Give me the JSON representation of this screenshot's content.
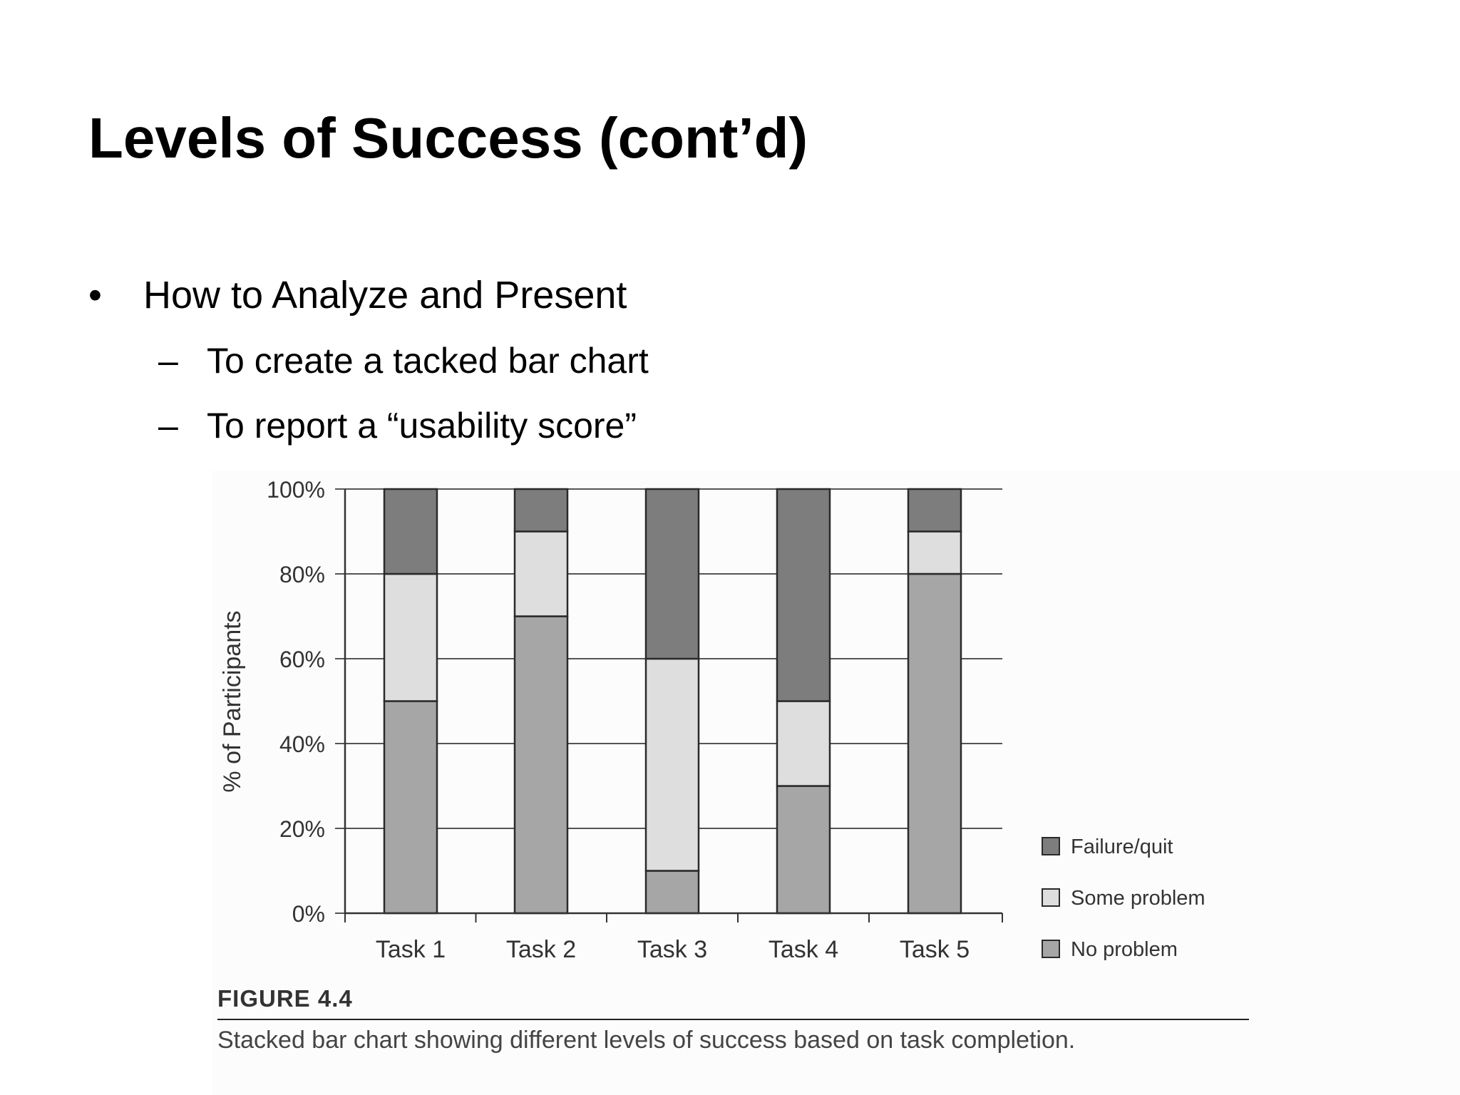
{
  "slide": {
    "title": "Levels of Success (cont’d)",
    "bullets": [
      {
        "text": "How to Analyze and Present",
        "marker": "•",
        "subbullets": [
          {
            "marker": "–",
            "text": "To create a tacked bar chart"
          },
          {
            "marker": "–",
            "text": "To report a “usability score”"
          }
        ]
      }
    ]
  },
  "figure": {
    "label": "FIGURE 4.4",
    "caption": "Stacked bar chart showing different levels of success based on task completion."
  },
  "chart_data": {
    "type": "bar",
    "stacked": true,
    "categories": [
      "Task 1",
      "Task 2",
      "Task 3",
      "Task 4",
      "Task 5"
    ],
    "series": [
      {
        "name": "No problem",
        "values": [
          50,
          70,
          10,
          30,
          80
        ],
        "color": "#a6a6a6"
      },
      {
        "name": "Some problem",
        "values": [
          30,
          20,
          50,
          20,
          10
        ],
        "color": "#dedede"
      },
      {
        "name": "Failure/quit",
        "values": [
          20,
          10,
          40,
          50,
          10
        ],
        "color": "#7d7d7d"
      }
    ],
    "legend_order": [
      "Failure/quit",
      "Some problem",
      "No problem"
    ],
    "ylabel": "% of Participants",
    "xlabel": "",
    "ylim": [
      0,
      100
    ],
    "yticks": [
      "0%",
      "20%",
      "40%",
      "60%",
      "80%",
      "100%"
    ],
    "grid": true,
    "legend_position": "right"
  }
}
